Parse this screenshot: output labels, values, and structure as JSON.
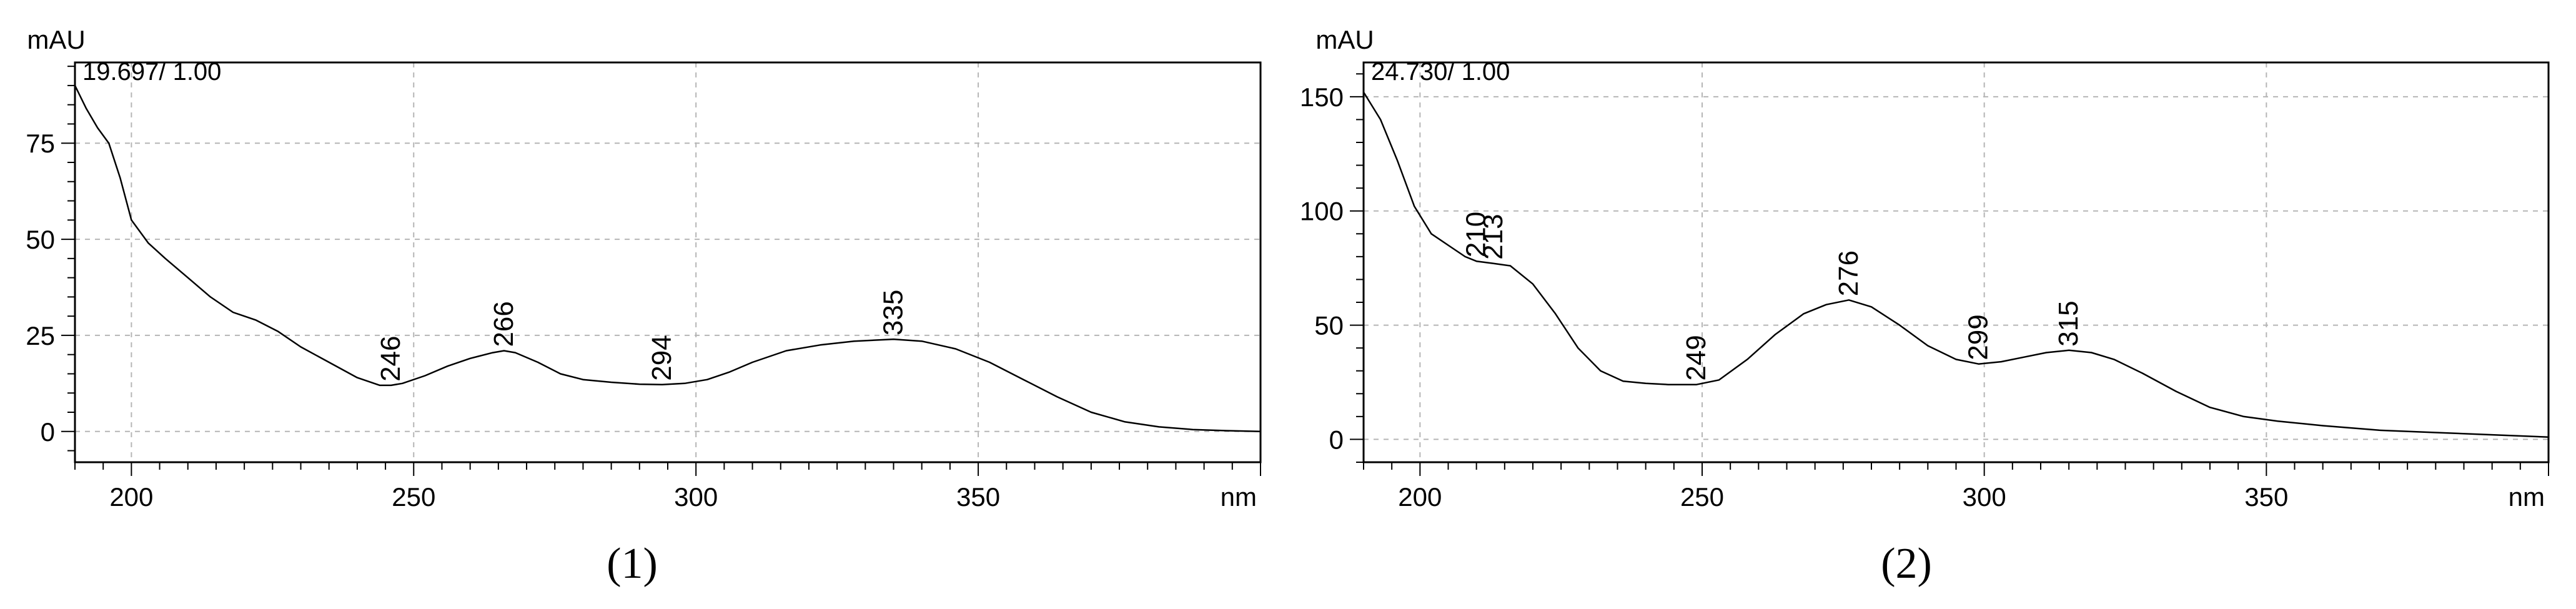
{
  "chart_data": [
    {
      "type": "line",
      "panel_label": "(1)",
      "annotation": "19.697/ 1.00",
      "ylabel": "mAU",
      "xlabel": "nm",
      "xlim": [
        190,
        400
      ],
      "ylim": [
        -8,
        96
      ],
      "x_ticks": [
        200,
        250,
        300,
        350
      ],
      "y_ticks": [
        0,
        25,
        50,
        75
      ],
      "grid": true,
      "series": [
        {
          "x": [
            190,
            192,
            194,
            196,
            198,
            200,
            203,
            206,
            210,
            214,
            218,
            222,
            226,
            230,
            235,
            240,
            244,
            246,
            248,
            252,
            256,
            260,
            264,
            266,
            268,
            272,
            276,
            280,
            285,
            290,
            294,
            298,
            302,
            306,
            310,
            316,
            322,
            328,
            335,
            340,
            346,
            352,
            358,
            364,
            370,
            376,
            382,
            388,
            394,
            400
          ],
          "y": [
            90,
            84,
            79,
            75,
            66,
            55,
            49,
            45,
            40,
            35,
            31,
            29,
            26,
            22,
            18,
            14,
            12,
            12,
            12.5,
            14.5,
            17,
            19,
            20.5,
            21,
            20.5,
            18,
            15,
            13.5,
            12.8,
            12.3,
            12.2,
            12.5,
            13.5,
            15.5,
            18,
            21,
            22.5,
            23.5,
            24,
            23.5,
            21.5,
            18,
            13.5,
            9,
            5,
            2.5,
            1.2,
            0.5,
            0.2,
            0
          ]
        }
      ],
      "peak_labels": [
        {
          "x": 246,
          "y": 12,
          "text": "246"
        },
        {
          "x": 266,
          "y": 21,
          "text": "266"
        },
        {
          "x": 294,
          "y": 12.2,
          "text": "294"
        },
        {
          "x": 335,
          "y": 24,
          "text": "335"
        }
      ]
    },
    {
      "type": "line",
      "panel_label": "(2)",
      "annotation": "24.730/ 1.00",
      "ylabel": "mAU",
      "xlabel": "nm",
      "xlim": [
        190,
        400
      ],
      "ylim": [
        -10,
        165
      ],
      "x_ticks": [
        200,
        250,
        300,
        350
      ],
      "y_ticks": [
        0,
        50,
        100,
        150
      ],
      "grid": true,
      "series": [
        {
          "x": [
            190,
            193,
            196,
            199,
            202,
            205,
            208,
            210,
            213,
            216,
            220,
            224,
            228,
            232,
            236,
            240,
            244,
            249,
            253,
            258,
            263,
            268,
            272,
            276,
            280,
            285,
            290,
            295,
            299,
            303,
            307,
            311,
            315,
            319,
            323,
            328,
            334,
            340,
            346,
            352,
            360,
            370,
            380,
            390,
            400
          ],
          "y": [
            152,
            140,
            122,
            102,
            90,
            85,
            80,
            78,
            77,
            76,
            68,
            55,
            40,
            30,
            25.5,
            24.5,
            24,
            24,
            26,
            35,
            46,
            55,
            59,
            61,
            58,
            50,
            41,
            35,
            33,
            34,
            36,
            38,
            39,
            38,
            35,
            29,
            21,
            14,
            10,
            8,
            6,
            4,
            3,
            2,
            1
          ]
        }
      ],
      "peak_labels": [
        {
          "x": 210,
          "y": 78,
          "text": "210"
        },
        {
          "x": 213,
          "y": 77,
          "text": "213"
        },
        {
          "x": 249,
          "y": 24,
          "text": "249"
        },
        {
          "x": 276,
          "y": 61,
          "text": "276"
        },
        {
          "x": 299,
          "y": 33,
          "text": "299"
        },
        {
          "x": 315,
          "y": 39,
          "text": "315"
        }
      ]
    }
  ]
}
